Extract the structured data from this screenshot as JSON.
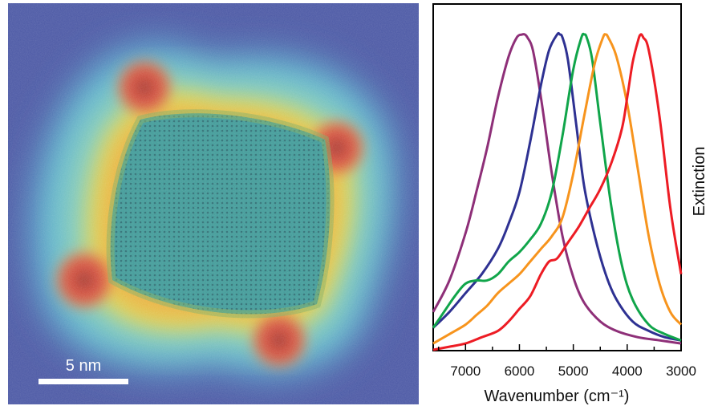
{
  "micrograph": {
    "scale_bar_label": "5 nm",
    "colors": {
      "background": "#4a5aa6",
      "halo_cyan": "#5fc4d6",
      "halo_yellow": "#e4d94a",
      "halo_red": "#d8483a",
      "core": "#3f9d9a"
    }
  },
  "chart_data": {
    "type": "line",
    "xlabel": "Wavenumber (cm⁻¹)",
    "ylabel": "Extinction",
    "xlim": [
      7600,
      3000
    ],
    "ylim": [
      0,
      1
    ],
    "xticks": [
      7000,
      6000,
      5000,
      4000,
      3000
    ],
    "x_reversed": true,
    "grid": false,
    "legend": "none",
    "series": [
      {
        "color": "#8e2f78",
        "x": [
          7600,
          7300,
          7000,
          6800,
          6600,
          6400,
          6200,
          6050,
          5950,
          5900,
          5850,
          5750,
          5600,
          5400,
          5200,
          5000,
          4800,
          4500,
          4200,
          3800,
          3400,
          3000
        ],
        "y": [
          0.12,
          0.22,
          0.37,
          0.5,
          0.64,
          0.8,
          0.93,
          0.99,
          1.0,
          1.0,
          0.99,
          0.95,
          0.8,
          0.56,
          0.36,
          0.23,
          0.15,
          0.09,
          0.06,
          0.04,
          0.03,
          0.02
        ]
      },
      {
        "color": "#2e3192",
        "x": [
          7600,
          7300,
          7000,
          6700,
          6400,
          6200,
          6000,
          5800,
          5600,
          5450,
          5300,
          5250,
          5200,
          5100,
          4950,
          4800,
          4600,
          4400,
          4200,
          3900,
          3600,
          3300,
          3000
        ],
        "y": [
          0.07,
          0.12,
          0.18,
          0.24,
          0.32,
          0.4,
          0.5,
          0.66,
          0.84,
          0.95,
          1.0,
          1.0,
          0.99,
          0.92,
          0.72,
          0.52,
          0.36,
          0.24,
          0.16,
          0.09,
          0.06,
          0.04,
          0.03
        ]
      },
      {
        "color": "#10a54a",
        "x": [
          7600,
          7400,
          7200,
          7000,
          6800,
          6600,
          6400,
          6200,
          6000,
          5800,
          5600,
          5400,
          5200,
          5000,
          4850,
          4800,
          4750,
          4650,
          4500,
          4300,
          4100,
          3900,
          3600,
          3300,
          3000
        ],
        "y": [
          0.07,
          0.12,
          0.17,
          0.21,
          0.22,
          0.22,
          0.24,
          0.28,
          0.31,
          0.35,
          0.4,
          0.5,
          0.68,
          0.89,
          0.99,
          1.0,
          0.99,
          0.92,
          0.72,
          0.46,
          0.27,
          0.16,
          0.08,
          0.05,
          0.03
        ]
      },
      {
        "color": "#f7941d",
        "x": [
          7600,
          7300,
          7000,
          6800,
          6600,
          6400,
          6200,
          6000,
          5800,
          5600,
          5400,
          5200,
          5000,
          4800,
          4600,
          4450,
          4400,
          4350,
          4200,
          4000,
          3800,
          3600,
          3400,
          3200,
          3000
        ],
        "y": [
          0.02,
          0.05,
          0.08,
          0.11,
          0.14,
          0.18,
          0.21,
          0.24,
          0.28,
          0.32,
          0.36,
          0.42,
          0.56,
          0.74,
          0.91,
          0.99,
          1.0,
          0.99,
          0.93,
          0.78,
          0.57,
          0.36,
          0.21,
          0.12,
          0.08
        ]
      },
      {
        "color": "#ed1c24",
        "x": [
          7600,
          7300,
          7000,
          6700,
          6400,
          6200,
          6000,
          5800,
          5600,
          5450,
          5300,
          5100,
          4900,
          4700,
          4500,
          4300,
          4100,
          4000,
          3900,
          3800,
          3750,
          3700,
          3600,
          3400,
          3200,
          3000
        ],
        "y": [
          0.0,
          0.01,
          0.02,
          0.04,
          0.06,
          0.09,
          0.13,
          0.17,
          0.24,
          0.28,
          0.29,
          0.34,
          0.39,
          0.45,
          0.51,
          0.59,
          0.7,
          0.8,
          0.91,
          0.98,
          1.0,
          0.99,
          0.95,
          0.74,
          0.45,
          0.24
        ]
      }
    ]
  }
}
